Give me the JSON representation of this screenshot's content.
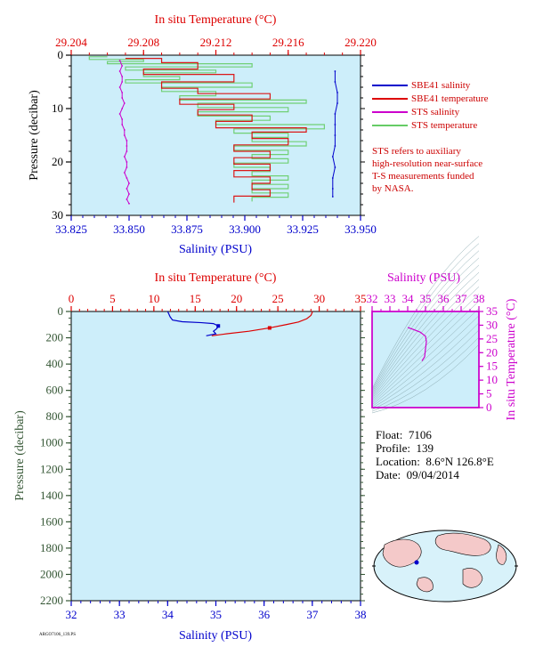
{
  "legend": {
    "items": [
      {
        "label": "SBE41 salinity",
        "color": "#0000cc"
      },
      {
        "label": "SBE41 temperature",
        "color": "#dd0000"
      },
      {
        "label": "STS salinity",
        "color": "#cc00cc"
      },
      {
        "label": "STS temperature",
        "color": "#66cc66"
      }
    ]
  },
  "note": {
    "lines": [
      "STS refers to auxiliary",
      "high-resolution near-surface",
      "T-S measurements funded",
      "by NASA."
    ]
  },
  "info": {
    "float_label": "Float:",
    "float_value": "7106",
    "profile_label": "Profile:",
    "profile_value": "139",
    "location_label": "Location:",
    "location_value": "8.6°N  126.8°E",
    "date_label": "Date:",
    "date_value": "09/04/2014"
  },
  "footer_code": "ARGO7106_139.PS",
  "colors": {
    "plot_bg": "#cdeefa",
    "temperature_axis": "#dd0000",
    "salinity_axis": "#0000cc",
    "pressure_axis": "#335533",
    "ts_axis": "#cc00cc"
  },
  "chart_data": [
    {
      "type": "line",
      "title": "",
      "top_axis_label": "In situ Temperature (°C)",
      "top_ticks": [
        "29.204",
        "29.208",
        "29.212",
        "29.216",
        "29.220"
      ],
      "top_lim": [
        29.204,
        29.22
      ],
      "xlabel": "Salinity (PSU)",
      "x_ticks": [
        "33.825",
        "33.850",
        "33.875",
        "33.900",
        "33.925",
        "33.950"
      ],
      "xlim": [
        33.825,
        33.95
      ],
      "ylabel": "Pressure (decibar)",
      "y_ticks": [
        "0",
        "10",
        "20",
        "30"
      ],
      "ylim": [
        0,
        30
      ],
      "y_inverted": true,
      "series": [
        {
          "name": "STS salinity",
          "axis": "salinity",
          "points": [
            [
              33.846,
              1
            ],
            [
              33.847,
              2
            ],
            [
              33.846,
              3
            ],
            [
              33.847,
              4
            ],
            [
              33.847,
              5
            ],
            [
              33.846,
              6
            ],
            [
              33.847,
              7
            ],
            [
              33.847,
              8
            ],
            [
              33.848,
              9
            ],
            [
              33.847,
              10
            ],
            [
              33.846,
              11
            ],
            [
              33.847,
              12
            ],
            [
              33.847,
              13
            ],
            [
              33.848,
              14
            ],
            [
              33.848,
              15
            ],
            [
              33.849,
              16
            ],
            [
              33.849,
              17
            ],
            [
              33.849,
              18
            ],
            [
              33.848,
              19
            ],
            [
              33.849,
              20
            ],
            [
              33.849,
              21
            ],
            [
              33.848,
              22
            ],
            [
              33.849,
              23
            ],
            [
              33.85,
              24
            ],
            [
              33.849,
              25
            ],
            [
              33.85,
              26
            ],
            [
              33.849,
              27
            ],
            [
              33.85,
              27.8
            ]
          ]
        },
        {
          "name": "SBE41 salinity",
          "axis": "salinity",
          "points": [
            [
              33.939,
              3
            ],
            [
              33.939,
              5
            ],
            [
              33.94,
              7
            ],
            [
              33.94,
              9
            ],
            [
              33.939,
              11
            ],
            [
              33.939,
              13
            ],
            [
              33.939,
              15
            ],
            [
              33.939,
              17
            ],
            [
              33.938,
              19
            ],
            [
              33.939,
              21
            ],
            [
              33.938,
              23
            ],
            [
              33.938,
              25
            ],
            [
              33.938,
              26.5
            ]
          ]
        },
        {
          "name": "STS temperature",
          "axis": "temperature",
          "points": [
            [
              29.206,
              0.3
            ],
            [
              29.205,
              0.8
            ],
            [
              29.208,
              1.2
            ],
            [
              29.206,
              1.6
            ],
            [
              29.214,
              2.2
            ],
            [
              29.207,
              2.8
            ],
            [
              29.212,
              3.3
            ],
            [
              29.208,
              4
            ],
            [
              29.21,
              4.6
            ],
            [
              29.207,
              5.2
            ],
            [
              29.214,
              6
            ],
            [
              29.209,
              6.8
            ],
            [
              29.212,
              7.6
            ],
            [
              29.21,
              8.4
            ],
            [
              29.217,
              9
            ],
            [
              29.211,
              9.8
            ],
            [
              29.216,
              10.6
            ],
            [
              29.211,
              11.4
            ],
            [
              29.215,
              12.2
            ],
            [
              29.212,
              13
            ],
            [
              29.218,
              13.8
            ],
            [
              29.213,
              14.6
            ],
            [
              29.216,
              15.4
            ],
            [
              29.214,
              16.2
            ],
            [
              29.217,
              17
            ],
            [
              29.213,
              17.8
            ],
            [
              29.216,
              18.6
            ],
            [
              29.214,
              19.4
            ],
            [
              29.216,
              20.2
            ],
            [
              29.213,
              21
            ],
            [
              29.215,
              21.8
            ],
            [
              29.214,
              22.6
            ],
            [
              29.216,
              23.4
            ],
            [
              29.214,
              24.2
            ],
            [
              29.216,
              25
            ],
            [
              29.214,
              25.8
            ],
            [
              29.216,
              26.6
            ],
            [
              29.214,
              27.4
            ]
          ]
        },
        {
          "name": "SBE41 temperature",
          "axis": "temperature",
          "points": [
            [
              29.207,
              0.6
            ],
            [
              29.209,
              1.4
            ],
            [
              29.211,
              2.6
            ],
            [
              29.208,
              3.6
            ],
            [
              29.213,
              5
            ],
            [
              29.209,
              6.2
            ],
            [
              29.211,
              7.2
            ],
            [
              29.215,
              8.2
            ],
            [
              29.21,
              9.2
            ],
            [
              29.213,
              10.2
            ],
            [
              29.211,
              11.2
            ],
            [
              29.214,
              12.4
            ],
            [
              29.212,
              13.6
            ],
            [
              29.217,
              14.4
            ],
            [
              29.214,
              15.6
            ],
            [
              29.216,
              16.8
            ],
            [
              29.213,
              18
            ],
            [
              29.215,
              19.2
            ],
            [
              29.213,
              20.4
            ],
            [
              29.215,
              21.6
            ],
            [
              29.213,
              22.8
            ],
            [
              29.215,
              24
            ],
            [
              29.214,
              25.2
            ],
            [
              29.215,
              26.4
            ],
            [
              29.213,
              27.6
            ]
          ]
        }
      ]
    },
    {
      "type": "line",
      "title": "",
      "top_axis_label": "In situ Temperature (°C)",
      "top_ticks": [
        "0",
        "5",
        "10",
        "15",
        "20",
        "25",
        "30",
        "35"
      ],
      "top_lim": [
        0,
        35
      ],
      "xlabel": "Salinity (PSU)",
      "x_ticks": [
        "32",
        "33",
        "34",
        "35",
        "36",
        "37",
        "38"
      ],
      "xlim": [
        32,
        38
      ],
      "ylabel": "Pressure (decibar)",
      "y_ticks": [
        "0",
        "200",
        "400",
        "600",
        "800",
        "1000",
        "1200",
        "1400",
        "1600",
        "1800",
        "2000",
        "2200"
      ],
      "ylim": [
        0,
        2200
      ],
      "y_inverted": true,
      "series": [
        {
          "name": "SBE41 salinity",
          "axis": "salinity",
          "points": [
            [
              34.0,
              0
            ],
            [
              34.02,
              15
            ],
            [
              34.05,
              40
            ],
            [
              34.1,
              65
            ],
            [
              34.3,
              78
            ],
            [
              34.7,
              85
            ],
            [
              34.95,
              92
            ],
            [
              35.05,
              110
            ],
            [
              35.02,
              130
            ],
            [
              34.95,
              150
            ],
            [
              35.0,
              170
            ],
            [
              34.8,
              185
            ]
          ]
        },
        {
          "name": "SBE41 temperature",
          "axis": "temperature",
          "points": [
            [
              29.2,
              0
            ],
            [
              29.0,
              30
            ],
            [
              28.5,
              55
            ],
            [
              27.5,
              80
            ],
            [
              26.0,
              100
            ],
            [
              24.0,
              125
            ],
            [
              21.5,
              150
            ],
            [
              18.5,
              172
            ],
            [
              17.0,
              185
            ]
          ]
        }
      ]
    },
    {
      "type": "scatter",
      "title": "",
      "xlabel": "Salinity (PSU)",
      "x_ticks": [
        "32",
        "33",
        "34",
        "35",
        "36",
        "37",
        "38"
      ],
      "xlim": [
        32,
        38
      ],
      "ylabel": "In situ Temperature (°C)",
      "y_ticks": [
        "0",
        "5",
        "10",
        "15",
        "20",
        "25",
        "30",
        "35"
      ],
      "ylim": [
        0,
        35
      ],
      "series": [
        {
          "name": "T-S profile",
          "points": [
            [
              34.0,
              29.2
            ],
            [
              34.3,
              28.5
            ],
            [
              34.7,
              27.5
            ],
            [
              35.0,
              26.0
            ],
            [
              35.05,
              24.0
            ],
            [
              35.0,
              21.5
            ],
            [
              34.95,
              18.5
            ],
            [
              34.8,
              17.0
            ]
          ]
        }
      ]
    }
  ]
}
